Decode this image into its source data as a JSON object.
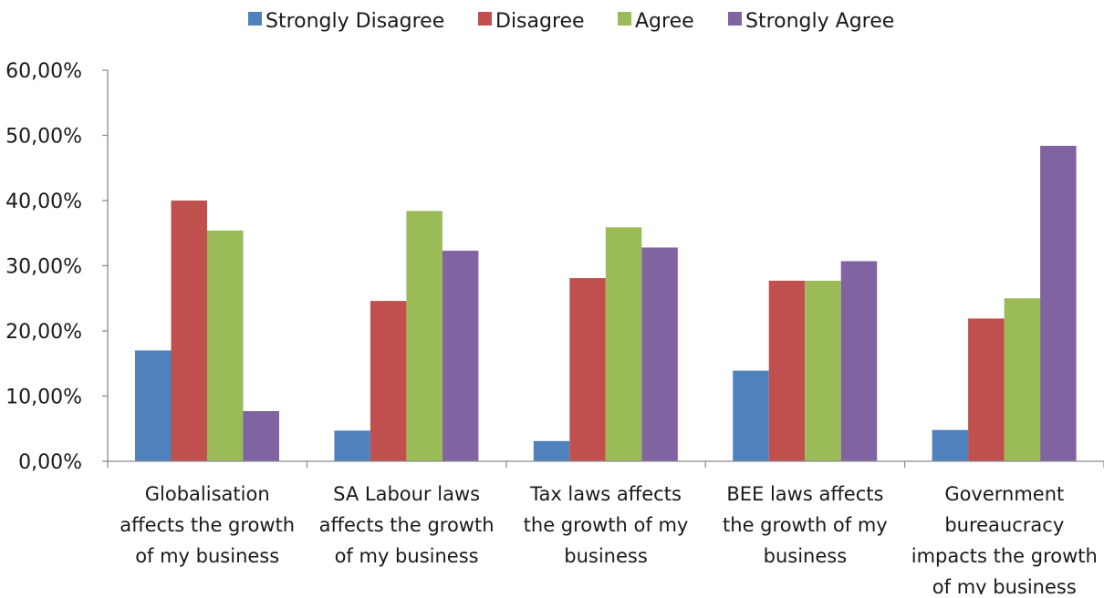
{
  "chart_data": {
    "type": "bar",
    "title": "",
    "xlabel": "",
    "ylabel": "",
    "ylim": [
      0,
      0.6
    ],
    "y_ticks": [
      "0,00%",
      "10,00%",
      "20,00%",
      "30,00%",
      "40,00%",
      "50,00%",
      "60,00%"
    ],
    "grid": false,
    "legend_position": "top",
    "categories": [
      [
        "Globalisation",
        "affects the growth",
        "of my business"
      ],
      [
        "SA Labour laws",
        "affects the growth",
        "of my business"
      ],
      [
        "Tax laws affects",
        "the growth of my",
        "business"
      ],
      [
        "BEE laws affects",
        "the growth of my",
        "business"
      ],
      [
        "Government",
        "bureaucracy",
        "impacts the growth",
        "of my business"
      ]
    ],
    "series": [
      {
        "name": "Strongly Disagree",
        "color": "#4f81bd",
        "values": [
          0.17,
          0.047,
          0.031,
          0.139,
          0.048
        ]
      },
      {
        "name": "Disagree",
        "color": "#c0504d",
        "values": [
          0.4,
          0.246,
          0.281,
          0.277,
          0.219
        ]
      },
      {
        "name": "Agree",
        "color": "#9bbb59",
        "values": [
          0.354,
          0.384,
          0.359,
          0.277,
          0.25
        ]
      },
      {
        "name": "Strongly Agree",
        "color": "#8064a2",
        "values": [
          0.077,
          0.323,
          0.328,
          0.307,
          0.484
        ]
      }
    ]
  }
}
